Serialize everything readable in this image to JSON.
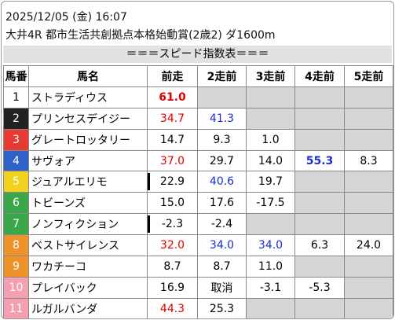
{
  "header": {
    "datetime": "2025/12/05 (金) 16:07",
    "race": "大井4R 都市生活共創拠点本格始動賞(2歳2) ダ1600m"
  },
  "table": {
    "caption": "＝＝＝スピード指数表＝＝＝",
    "columns": [
      "馬番",
      "馬名",
      "前走",
      "2走前",
      "3走前",
      "4走前",
      "5走前"
    ],
    "rows": [
      {
        "number": "1",
        "name": "ストラディウス",
        "gate_color": "#ffffff",
        "number_color": "#000000",
        "cells": [
          {
            "text": "61.0",
            "color": "#e00000",
            "bold": true
          },
          null,
          null,
          null,
          null
        ]
      },
      {
        "number": "2",
        "name": "プリンセスデイジー",
        "gate_color": "#222222",
        "number_color": "#ffffff",
        "cells": [
          {
            "text": "34.7",
            "color": "#e00000"
          },
          {
            "text": "41.3",
            "color": "#1a2fd0"
          },
          null,
          null,
          null
        ]
      },
      {
        "number": "3",
        "name": "グレートロッタリー",
        "gate_color": "#e83a30",
        "number_color": "#ffffff",
        "cells": [
          {
            "text": "14.7"
          },
          {
            "text": "9.3"
          },
          {
            "text": "1.0"
          },
          null,
          null
        ]
      },
      {
        "number": "4",
        "name": "サヴォア",
        "gate_color": "#2f62c8",
        "number_color": "#ffffff",
        "cells": [
          {
            "text": "37.0",
            "color": "#e00000"
          },
          {
            "text": "29.7"
          },
          {
            "text": "14.0"
          },
          {
            "text": "55.3",
            "color": "#1a2fd0",
            "bold": true
          },
          {
            "text": "8.3"
          }
        ]
      },
      {
        "number": "5",
        "name": "ジュアルエリモ",
        "gate_color": "#f2d21e",
        "number_color": "#ffffff",
        "cells": [
          {
            "text": "22.9",
            "marker": true
          },
          {
            "text": "40.6",
            "color": "#1a2fd0"
          },
          {
            "text": "19.7"
          },
          null,
          null
        ]
      },
      {
        "number": "6",
        "name": "トビーンズ",
        "gate_color": "#3aa84a",
        "number_color": "#ffffff",
        "cells": [
          {
            "text": "15.0"
          },
          {
            "text": "17.6"
          },
          {
            "text": "-17.5"
          },
          null,
          null
        ]
      },
      {
        "number": "7",
        "name": "ノンフィクション",
        "gate_color": "#3aa84a",
        "number_color": "#ffffff",
        "cells": [
          {
            "text": "-2.3",
            "marker": true
          },
          {
            "text": "-2.4"
          },
          null,
          null,
          null
        ]
      },
      {
        "number": "8",
        "name": "ベストサイレンス",
        "gate_color": "#f0922a",
        "number_color": "#ffffff",
        "cells": [
          {
            "text": "32.0",
            "color": "#e00000"
          },
          {
            "text": "34.0",
            "color": "#1a2fd0"
          },
          {
            "text": "34.0",
            "color": "#1a2fd0"
          },
          {
            "text": "6.3"
          },
          {
            "text": "24.0"
          }
        ]
      },
      {
        "number": "9",
        "name": "ワカチーコ",
        "gate_color": "#f0922a",
        "number_color": "#ffffff",
        "cells": [
          {
            "text": "8.7"
          },
          {
            "text": "8.7"
          },
          {
            "text": "11.0"
          },
          null,
          null
        ]
      },
      {
        "number": "10",
        "name": "プレイバック",
        "gate_color": "#f4a0b0",
        "number_color": "#ffffff",
        "cells": [
          {
            "text": "16.9"
          },
          {
            "text": "取消"
          },
          {
            "text": "-3.1"
          },
          {
            "text": "-5.3"
          },
          null
        ]
      },
      {
        "number": "11",
        "name": "ルガルバンダ",
        "gate_color": "#f4a0b0",
        "number_color": "#ffffff",
        "cells": [
          {
            "text": "44.3",
            "color": "#e00000"
          },
          {
            "text": "25.3"
          },
          null,
          null,
          null
        ]
      }
    ]
  }
}
